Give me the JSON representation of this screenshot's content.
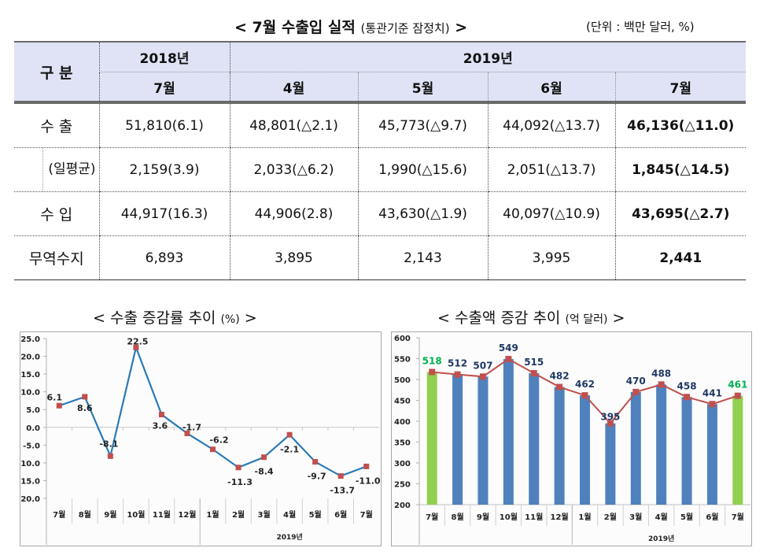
{
  "header": {
    "title": "< 7월 수출입 실적",
    "title_sub": "(통관기준 잠정치)",
    "title_close": ">",
    "unit": "(단위 : 백만 달러, %)"
  },
  "table": {
    "corner_label": "구 분",
    "year_2018": "2018년",
    "year_2019": "2019년",
    "months": [
      "7월",
      "4월",
      "5월",
      "6월",
      "7월"
    ],
    "rows": [
      {
        "label": "수 출",
        "values": [
          "51,810(6.1)",
          "48,801(△2.1)",
          "45,773(△9.7)",
          "44,092(△13.7)",
          "46,136(△11.0)"
        ]
      },
      {
        "label": "(일평균)",
        "values": [
          "2,159(3.9)",
          "2,033(△6.2)",
          "1,990(△15.6)",
          "2,051(△13.7)",
          "1,845(△14.5)"
        ]
      },
      {
        "label": "수 입",
        "values": [
          "44,917(16.3)",
          "44,906(2.8)",
          "43,630(△1.9)",
          "40,097(△10.9)",
          "43,695(△2.7)"
        ]
      },
      {
        "label": "무역수지",
        "values": [
          "6,893",
          "3,895",
          "2,143",
          "3,995",
          "2,441"
        ]
      }
    ]
  },
  "charts": {
    "left_title": "< 수출 증감률 추이",
    "left_unit": "(%)",
    "left_close": ">",
    "right_title": "< 수출액 증감 추이",
    "right_unit": "(억 달러)",
    "right_close": ">"
  },
  "chart_data": [
    {
      "type": "line",
      "title": "수출 증감률 추이 (%)",
      "categories": [
        "7월",
        "8월",
        "9월",
        "10월",
        "11월",
        "12월",
        "1월",
        "2월",
        "3월",
        "4월",
        "5월",
        "6월",
        "7월"
      ],
      "group_label": "2019년",
      "values": [
        6.1,
        8.6,
        -8.1,
        22.5,
        3.6,
        -1.7,
        -6.2,
        -11.3,
        -8.4,
        -2.1,
        -9.7,
        -13.7,
        -11.0
      ],
      "labels": [
        "6.1",
        "8.6",
        "-8.1",
        "22.5",
        "3.6",
        "-1.7",
        "-6.2",
        "-11.3",
        "-8.4",
        "-2.1",
        "-9.7",
        "-13.7",
        "-11.0"
      ],
      "yticks": [
        "25.0",
        "20.0",
        "15.0",
        "10.0",
        "5.0",
        "0.0",
        "-5.0",
        "-10.0",
        "-15.0",
        "-20.0"
      ],
      "ylim": [
        -20,
        25
      ],
      "line_color": "#2a7ab8",
      "marker_color": "#c0504d"
    },
    {
      "type": "bar",
      "title": "수출액 증감 추이 (억 달러)",
      "categories": [
        "7월",
        "8월",
        "9월",
        "10월",
        "11월",
        "12월",
        "1월",
        "2월",
        "3월",
        "4월",
        "5월",
        "6월",
        "7월"
      ],
      "group_label": "2019년",
      "values": [
        518,
        512,
        507,
        549,
        515,
        482,
        462,
        395,
        470,
        488,
        458,
        441,
        461
      ],
      "highlight": [
        true,
        false,
        false,
        false,
        false,
        false,
        false,
        false,
        false,
        false,
        false,
        false,
        true
      ],
      "yticks": [
        "600",
        "550",
        "500",
        "450",
        "400",
        "350",
        "300",
        "250",
        "200"
      ],
      "ylim": [
        200,
        600
      ],
      "bar_color": "#4f81bd",
      "highlight_color": "#92d050",
      "line_color": "#c0504d",
      "label_color": "#1f3864",
      "highlight_label_color": "#00b050"
    }
  ]
}
